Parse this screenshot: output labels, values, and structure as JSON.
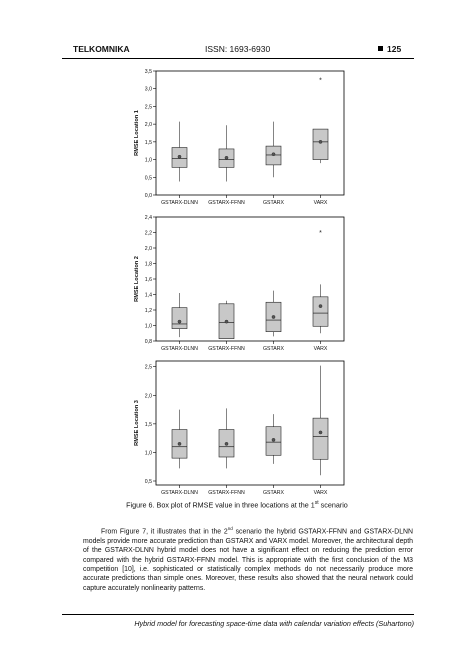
{
  "header": {
    "journal": "TELKOMNIKA",
    "issn": "ISSN: 1693-6930",
    "page_number": "125"
  },
  "figure": {
    "caption_prefix": "Figure 6. Box plot of RMSE value in three locations at the 1",
    "caption_sup": "st",
    "caption_suffix": " scenario"
  },
  "chart_data": [
    {
      "type": "box",
      "ylabel": "RMSE Location 1",
      "ylim": [
        0.0,
        3.5
      ],
      "yticks": [
        "0,0",
        "0,5",
        "1,0",
        "1,5",
        "2,0",
        "2,5",
        "3,0",
        "3,5"
      ],
      "tick_values": [
        0.0,
        0.5,
        1.0,
        1.5,
        2.0,
        2.5,
        3.0,
        3.5
      ],
      "categories": [
        "GSTARX-DLNN",
        "GSTARX-FFNN",
        "GSTARX",
        "VARX"
      ],
      "boxes": [
        {
          "min": 0.38,
          "q1": 0.78,
          "median": 1.03,
          "q3": 1.34,
          "max": 2.07,
          "mean": 1.08,
          "outliers": []
        },
        {
          "min": 0.38,
          "q1": 0.78,
          "median": 1.0,
          "q3": 1.3,
          "max": 1.97,
          "mean": 1.05,
          "outliers": []
        },
        {
          "min": 0.5,
          "q1": 0.85,
          "median": 1.13,
          "q3": 1.38,
          "max": 2.07,
          "mean": 1.15,
          "outliers": []
        },
        {
          "min": 0.9,
          "q1": 1.0,
          "median": 1.5,
          "q3": 1.86,
          "max": 1.86,
          "mean": 1.5,
          "outliers": [
            3.25
          ]
        }
      ]
    },
    {
      "type": "box",
      "ylabel": "RMSE Location 2",
      "ylim": [
        0.8,
        2.4
      ],
      "yticks": [
        "0,8",
        "1,0",
        "1,2",
        "1,4",
        "1,6",
        "1,8",
        "2,0",
        "2,2",
        "2,4"
      ],
      "tick_values": [
        0.8,
        1.0,
        1.2,
        1.4,
        1.6,
        1.8,
        2.0,
        2.2,
        2.4
      ],
      "categories": [
        "GSTARX-DLNN",
        "GSTARX-FFNN",
        "GSTARX",
        "VARX"
      ],
      "boxes": [
        {
          "min": 0.85,
          "q1": 0.96,
          "median": 1.02,
          "q3": 1.23,
          "max": 1.42,
          "mean": 1.05,
          "outliers": []
        },
        {
          "min": 0.83,
          "q1": 0.83,
          "median": 1.04,
          "q3": 1.28,
          "max": 1.32,
          "mean": 1.05,
          "outliers": []
        },
        {
          "min": 0.86,
          "q1": 0.92,
          "median": 1.07,
          "q3": 1.3,
          "max": 1.45,
          "mean": 1.11,
          "outliers": []
        },
        {
          "min": 0.9,
          "q1": 0.99,
          "median": 1.16,
          "q3": 1.37,
          "max": 1.53,
          "mean": 1.25,
          "outliers": [
            2.2
          ]
        }
      ]
    },
    {
      "type": "box",
      "ylabel": "RMSE Location 3",
      "ylim": [
        0.43,
        2.6
      ],
      "yticks": [
        "0,5",
        "1,0",
        "1,5",
        "2,0",
        "2,5"
      ],
      "tick_values": [
        0.5,
        1.0,
        1.5,
        2.0,
        2.5
      ],
      "categories": [
        "GSTARX-DLNN",
        "GSTARX-FFNN",
        "GSTARX",
        "VARX"
      ],
      "boxes": [
        {
          "min": 0.72,
          "q1": 0.9,
          "median": 1.1,
          "q3": 1.4,
          "max": 1.75,
          "mean": 1.15,
          "outliers": []
        },
        {
          "min": 0.72,
          "q1": 0.92,
          "median": 1.1,
          "q3": 1.4,
          "max": 1.77,
          "mean": 1.15,
          "outliers": []
        },
        {
          "min": 0.8,
          "q1": 0.95,
          "median": 1.18,
          "q3": 1.45,
          "max": 1.67,
          "mean": 1.22,
          "outliers": []
        },
        {
          "min": 0.6,
          "q1": 0.88,
          "median": 1.28,
          "q3": 1.6,
          "max": 2.52,
          "mean": 1.35,
          "outliers": []
        }
      ]
    }
  ],
  "body": {
    "p1_a": "From Figure 7, it illustrates that in the 2",
    "p1_sup": "nd",
    "p1_b": " scenario the hybrid GSTARX-FFNN and GSTARX-DLNN models provide more accurate prediction than GSTARX and VARX model. Moreover, the architectural depth of the GSTARX-DLNN hybrid model does not have a significant effect on reducing the prediction error compared with the hybrid GSTARX-FFNN model. This is appropriate with the first conclusion of the M3 competition [10], i.e. sophisticated or statistically complex methods do not necessarily produce more accurate predictions than simple ones. Moreover, these results also showed that the neural network could capture accurately nonlinearity patterns."
  },
  "footer": {
    "running_title": "Hybrid model for forecasting space-time data with calendar variation effects (Suhartono)"
  }
}
